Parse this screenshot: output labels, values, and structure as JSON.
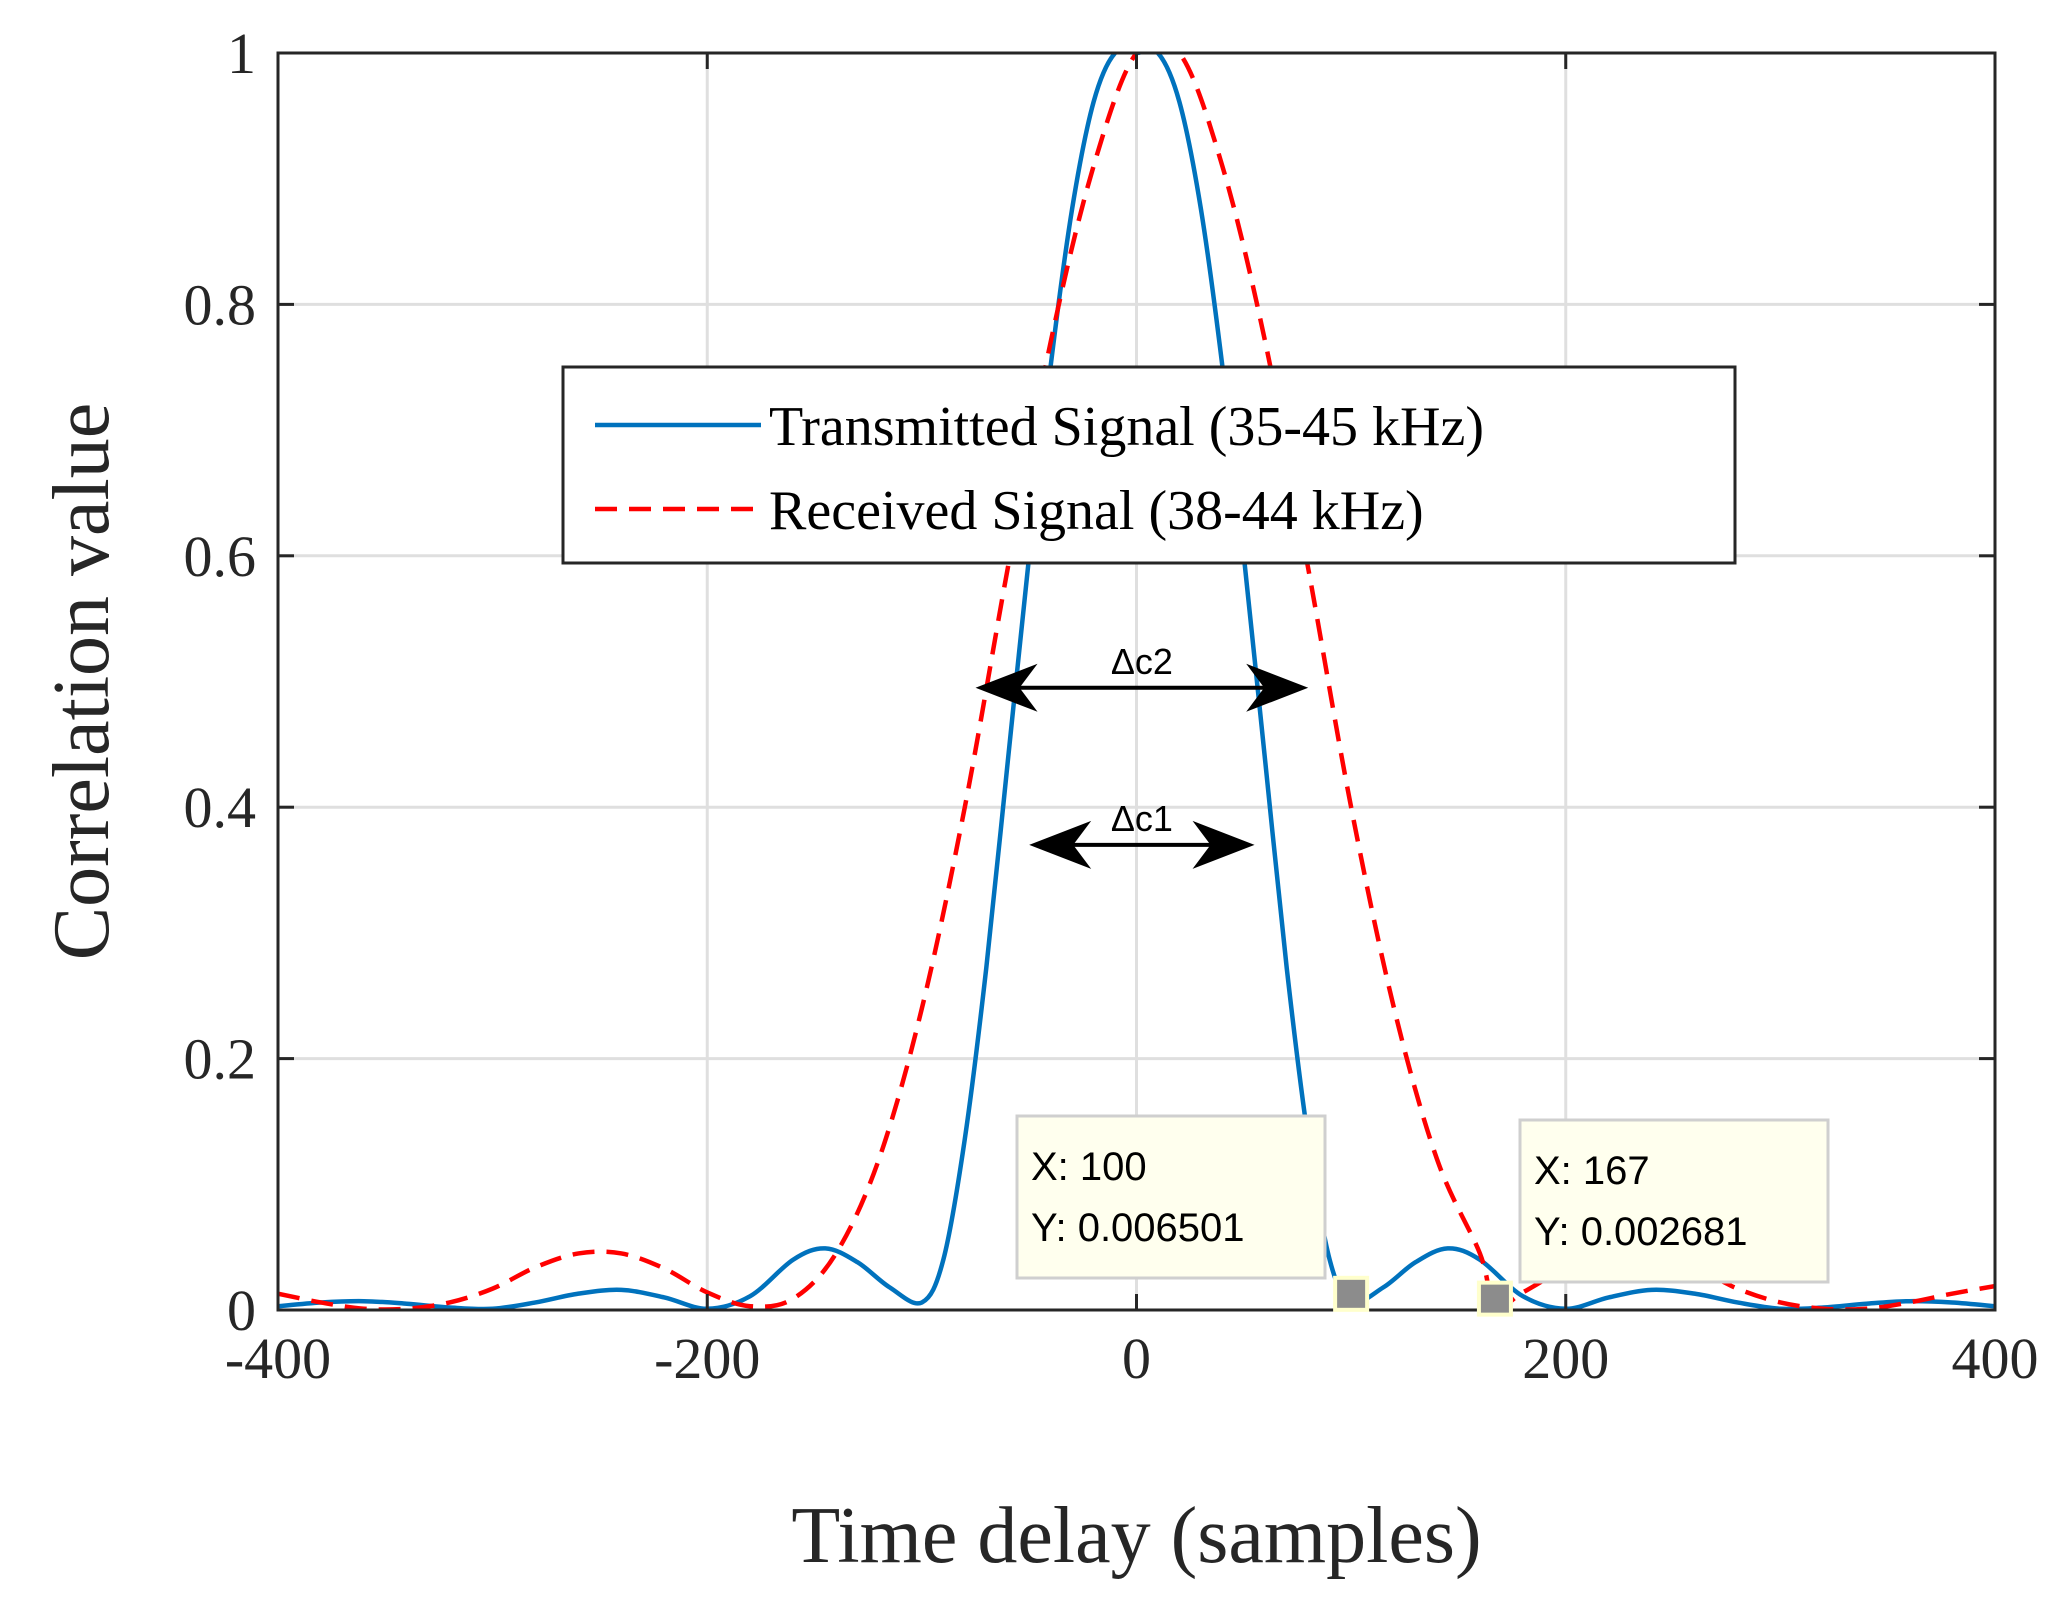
{
  "chart_data": {
    "type": "line",
    "title": "",
    "xlabel": "Time delay (samples)",
    "ylabel": "Correlation value",
    "xlim": [
      -400,
      400
    ],
    "ylim": [
      0,
      1
    ],
    "xticks": [
      -400,
      -200,
      0,
      200,
      400
    ],
    "xtick_labels": [
      "-400",
      "-200",
      "0",
      "200",
      "400"
    ],
    "yticks": [
      0,
      0.2,
      0.4,
      0.6,
      0.8,
      1
    ],
    "ytick_labels": [
      "0",
      "0.2",
      "0.4",
      "0.6",
      "0.8",
      "1"
    ],
    "grid": true,
    "legend_position": "upper-center",
    "series": [
      {
        "name": "Transmitted Signal (35-45 kHz)",
        "color": "#0072BD",
        "style": "solid",
        "bandwidth_khz": 10,
        "x": [
          -400,
          -380,
          -360,
          -340,
          -320,
          -300,
          -280,
          -260,
          -240,
          -220,
          -200,
          -180,
          -160,
          -145,
          -130,
          -115,
          -100,
          -90,
          -80,
          -70,
          -60,
          -50,
          -40,
          -30,
          -20,
          -10,
          0,
          10,
          20,
          30,
          40,
          50,
          60,
          70,
          80,
          90,
          100,
          115,
          130,
          145,
          160,
          180,
          200,
          220,
          240,
          260,
          280,
          300,
          320,
          340,
          360,
          380,
          400
        ],
        "y": [
          0.003,
          0.006,
          0.007,
          0.005,
          0.002,
          0.001,
          0.006,
          0.013,
          0.016,
          0.01,
          0.001,
          0.011,
          0.04,
          0.049,
          0.038,
          0.018,
          0.006,
          0.04,
          0.136,
          0.272,
          0.436,
          0.6,
          0.751,
          0.876,
          0.961,
          1.0,
          1.0,
          1.0,
          0.961,
          0.876,
          0.751,
          0.6,
          0.436,
          0.272,
          0.136,
          0.04,
          0.0065,
          0.018,
          0.038,
          0.049,
          0.04,
          0.011,
          0.001,
          0.01,
          0.016,
          0.013,
          0.006,
          0.001,
          0.002,
          0.005,
          0.007,
          0.006,
          0.003
        ]
      },
      {
        "name": "Received Signal (38-44 kHz)",
        "color": "#FF0000",
        "style": "dashed",
        "bandwidth_khz": 6,
        "x": [
          -400,
          -380,
          -360,
          -340,
          -320,
          -300,
          -280,
          -260,
          -240,
          -220,
          -200,
          -180,
          -160,
          -140,
          -120,
          -100,
          -80,
          -60,
          -40,
          -20,
          0,
          20,
          40,
          60,
          80,
          100,
          120,
          140,
          160,
          167,
          180,
          200,
          220,
          240,
          260,
          280,
          300,
          320,
          340,
          360,
          380,
          400
        ],
        "y": [
          0.013,
          0.006,
          0.001,
          0.001,
          0.006,
          0.017,
          0.034,
          0.045,
          0.045,
          0.033,
          0.014,
          0.003,
          0.009,
          0.045,
          0.12,
          0.24,
          0.4,
          0.59,
          0.77,
          0.91,
          1.0,
          1.0,
          0.91,
          0.77,
          0.59,
          0.4,
          0.24,
          0.12,
          0.045,
          0.0027,
          0.014,
          0.033,
          0.045,
          0.045,
          0.034,
          0.017,
          0.006,
          0.001,
          0.001,
          0.006,
          0.013,
          0.019
        ]
      }
    ],
    "annotations": [
      {
        "label": "Δc2",
        "x_from": -75,
        "x_to": 80,
        "y": 0.495
      },
      {
        "label": "Δc1",
        "x_from": -50,
        "x_to": 55,
        "y": 0.37
      }
    ],
    "datatips": [
      {
        "x_label": "X: 100",
        "y_label": "Y: 0.006501",
        "x": 100,
        "y": 0.006501
      },
      {
        "x_label": "X: 167",
        "y_label": "Y: 0.002681",
        "x": 167,
        "y": 0.002681
      }
    ]
  }
}
